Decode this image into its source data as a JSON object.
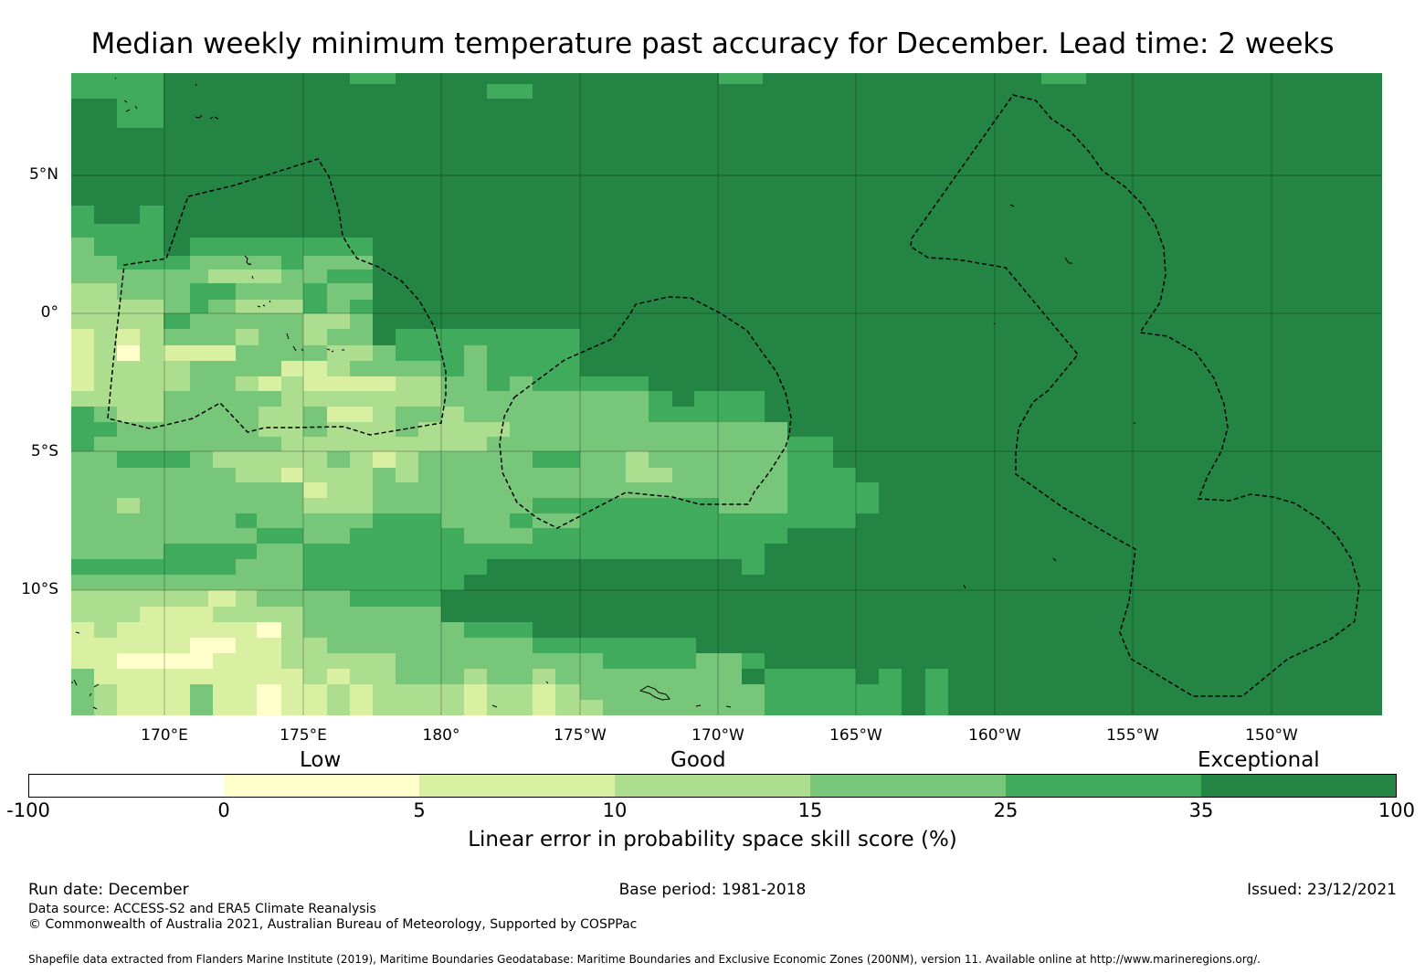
{
  "title": "Median weekly minimum temperature past accuracy for December. Lead time: 2 weeks",
  "colors": {
    "c0": "#ffffff",
    "c1": "#ffffcc",
    "c2": "#d9f0a3",
    "c3": "#addd8e",
    "c4": "#78c679",
    "c5": "#41ab5d",
    "c6": "#238443"
  },
  "map": {
    "lat_ticks": [
      "5°N",
      "0°",
      "5°S",
      "10°S"
    ],
    "lon_ticks": [
      "170°E",
      "175°E",
      "180°",
      "175°W",
      "170°W",
      "165°W",
      "160°W",
      "155°W",
      "150°W"
    ]
  },
  "colorbar": {
    "category_labels": [
      "Low",
      "Good",
      "Exceptional"
    ],
    "ticks": [
      "-100",
      "0",
      "5",
      "10",
      "15",
      "25",
      "35",
      "100"
    ],
    "title": "Linear error in probability space skill score (%)"
  },
  "footer": {
    "run_date": "Run date: December",
    "base_period": "Base period: 1981-2018",
    "issued": "Issued: 23/12/2021",
    "data_source": "Data source: ACCESS-S2 and ERA5 Climate Reanalysis",
    "copyright": "© Commonwealth of Australia 2021, Australian Bureau of Meteorology, Supported by COSPPac",
    "shapefile": "Shapefile data extracted from Flanders Marine Institute (2019), Maritime Boundaries Geodatabase: Maritime Boundaries and Exclusive Economic Zones (200NM), version 11. Available online at http://www.marineregions.org/."
  }
}
